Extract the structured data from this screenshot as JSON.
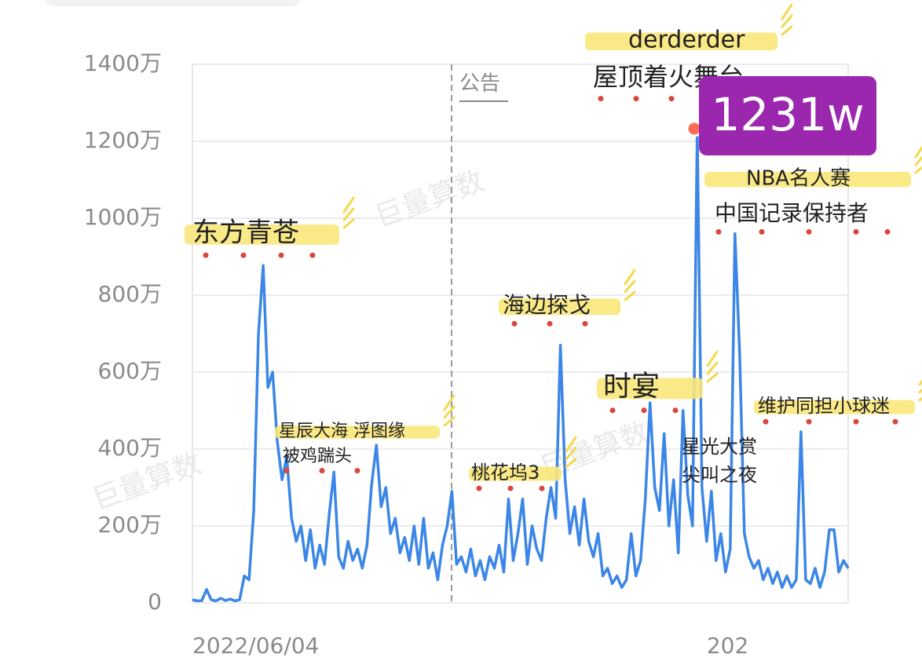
{
  "chart_data": {
    "type": "line",
    "categories": [
      "2022/06/04",
      null,
      null,
      null,
      null,
      null,
      null,
      null,
      null,
      null,
      null,
      null,
      null,
      null,
      null,
      null,
      null,
      null,
      null,
      null,
      null,
      null,
      null,
      null,
      null,
      null,
      null,
      null,
      null,
      null,
      null,
      null,
      null,
      null,
      null,
      null,
      null,
      null,
      null,
      null,
      null,
      null,
      null,
      null,
      null,
      null,
      null,
      null,
      null,
      null,
      null,
      null,
      null,
      null,
      null,
      null,
      null,
      null,
      null,
      null,
      null,
      null,
      null,
      null,
      null,
      null,
      null,
      null,
      null,
      null,
      null,
      null,
      null,
      null,
      null,
      null,
      null,
      null,
      null,
      null,
      null,
      null,
      null,
      null,
      null,
      null,
      null,
      null,
      null,
      null,
      null,
      null,
      null,
      null,
      null,
      null,
      null,
      null,
      null,
      null,
      null,
      null,
      null,
      null,
      null,
      null,
      null,
      null,
      null,
      null,
      null,
      null,
      null,
      null,
      "202",
      null,
      null,
      null,
      null,
      null,
      null,
      null,
      null,
      null,
      null,
      null,
      null,
      null,
      null,
      null,
      null,
      null,
      null,
      null,
      null,
      null,
      null,
      null,
      null,
      null
    ],
    "series": [
      {
        "color": "#3b86e6",
        "values": [
          8,
          5,
          6,
          35,
          8,
          5,
          12,
          6,
          10,
          5,
          8,
          70,
          60,
          240,
          700,
          877,
          560,
          600,
          420,
          320,
          380,
          220,
          160,
          200,
          110,
          190,
          90,
          150,
          100,
          230,
          340,
          120,
          90,
          160,
          110,
          140,
          90,
          150,
          310,
          410,
          250,
          300,
          180,
          220,
          130,
          170,
          110,
          200,
          100,
          220,
          90,
          130,
          60,
          150,
          200,
          290,
          100,
          120,
          80,
          140,
          70,
          110,
          60,
          120,
          90,
          150,
          80,
          270,
          110,
          180,
          270,
          100,
          200,
          140,
          110,
          220,
          300,
          220,
          670,
          320,
          180,
          250,
          150,
          270,
          160,
          120,
          180,
          70,
          90,
          50,
          70,
          40,
          60,
          180,
          70,
          110,
          270,
          520,
          300,
          240,
          440,
          200,
          320,
          130,
          500,
          280,
          200,
          1231,
          300,
          160,
          290,
          110,
          180,
          80,
          140,
          960,
          650,
          180,
          120,
          90,
          110,
          60,
          90,
          50,
          80,
          40,
          70,
          40,
          60,
          445,
          60,
          50,
          90,
          40,
          80,
          190,
          190,
          80,
          110,
          90
        ]
      }
    ],
    "ylim": [
      0,
      1400
    ],
    "yticks": [
      {
        "value": 0,
        "label": "0"
      },
      {
        "value": 200,
        "label": "200万"
      },
      {
        "value": 400,
        "label": "400万"
      },
      {
        "value": 600,
        "label": "600万"
      },
      {
        "value": 800,
        "label": "800万"
      },
      {
        "value": 1000,
        "label": "1000万"
      },
      {
        "value": 1200,
        "label": "1200万"
      },
      {
        "value": 1400,
        "label": "1400万"
      }
    ],
    "grid": true,
    "annotations": [
      {
        "text": "东方青苍"
      },
      {
        "text": "星辰大海 浮图缘"
      },
      {
        "text": "被鸡踹头"
      },
      {
        "text": "桃花坞3"
      },
      {
        "text": "海边探戈"
      },
      {
        "text": "时宴"
      },
      {
        "text": "derderder"
      },
      {
        "text": "屋顶着火舞台"
      },
      {
        "text": "NBA名人赛"
      },
      {
        "text": "中国记录保持者"
      },
      {
        "text": "星光大赏"
      },
      {
        "text": "尖叫之夜"
      },
      {
        "text": "维护同担小球迷"
      },
      {
        "text": "1231w"
      },
      {
        "text": "公告"
      }
    ],
    "watermark": "巨量算数"
  }
}
